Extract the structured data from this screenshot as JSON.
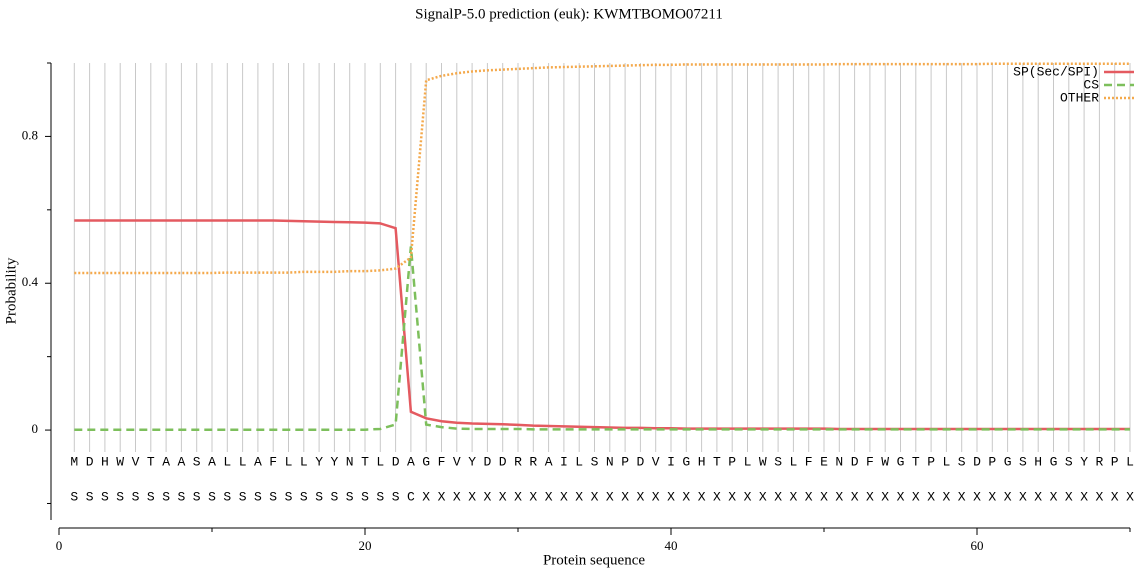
{
  "chart_data": {
    "type": "line",
    "title": "SignalP-5.0 prediction (euk):  KWMTBOMO07211",
    "xlabel": "Protein sequence",
    "ylabel": "Probability",
    "xlim": [
      0,
      70
    ],
    "xticks": [
      0,
      20,
      40,
      60
    ],
    "xminor_ticks": [
      10,
      30,
      50,
      70
    ],
    "ylim": [
      -0.245,
      1.0
    ],
    "yticks": [
      0,
      0.4,
      0.8
    ],
    "yminor_ticks": [
      -0.2,
      0.2,
      0.6,
      1.0
    ],
    "grid": "x",
    "legend": "upper right",
    "x": [
      1,
      2,
      3,
      4,
      5,
      6,
      7,
      8,
      9,
      10,
      11,
      12,
      13,
      14,
      15,
      16,
      17,
      18,
      19,
      20,
      21,
      22,
      23,
      24,
      25,
      26,
      27,
      28,
      29,
      30,
      31,
      32,
      33,
      34,
      35,
      36,
      37,
      38,
      39,
      40,
      41,
      42,
      43,
      44,
      45,
      46,
      47,
      48,
      49,
      50,
      51,
      52,
      53,
      54,
      55,
      56,
      57,
      58,
      59,
      60,
      61,
      62,
      63,
      64,
      65,
      66,
      67,
      68,
      69,
      70
    ],
    "residues": [
      "M",
      "D",
      "H",
      "W",
      "V",
      "T",
      "A",
      "A",
      "S",
      "A",
      "L",
      "L",
      "A",
      "F",
      "L",
      "L",
      "Y",
      "Y",
      "N",
      "T",
      "L",
      "D",
      "A",
      "G",
      "F",
      "V",
      "Y",
      "D",
      "D",
      "R",
      "R",
      "A",
      "I",
      "L",
      "S",
      "N",
      "P",
      "D",
      "V",
      "I",
      "G",
      "H",
      "T",
      "P",
      "L",
      "W",
      "S",
      "L",
      "F",
      "E",
      "N",
      "D",
      "F",
      "W",
      "G",
      "T",
      "P",
      "L",
      "S",
      "D",
      "P",
      "G",
      "S",
      "H",
      "G",
      "S",
      "Y",
      "R",
      "P",
      "L"
    ],
    "position_labels": [
      "S",
      "S",
      "S",
      "S",
      "S",
      "S",
      "S",
      "S",
      "S",
      "S",
      "S",
      "S",
      "S",
      "S",
      "S",
      "S",
      "S",
      "S",
      "S",
      "S",
      "S",
      "S",
      "C",
      "X",
      "X",
      "X",
      "X",
      "X",
      "X",
      "X",
      "X",
      "X",
      "X",
      "X",
      "X",
      "X",
      "X",
      "X",
      "X",
      "X",
      "X",
      "X",
      "X",
      "X",
      "X",
      "X",
      "X",
      "X",
      "X",
      "X",
      "X",
      "X",
      "X",
      "X",
      "X",
      "X",
      "X",
      "X",
      "X",
      "X",
      "X",
      "X",
      "X",
      "X",
      "X",
      "X",
      "X",
      "X",
      "X",
      "X"
    ],
    "series": [
      {
        "name": "SP(Sec/SPI)",
        "color": "#e45a60",
        "style": "solid",
        "values": [
          0.571,
          0.571,
          0.571,
          0.571,
          0.571,
          0.571,
          0.571,
          0.571,
          0.571,
          0.571,
          0.571,
          0.571,
          0.571,
          0.571,
          0.57,
          0.569,
          0.568,
          0.567,
          0.566,
          0.565,
          0.563,
          0.55,
          0.05,
          0.032,
          0.024,
          0.02,
          0.018,
          0.017,
          0.016,
          0.014,
          0.012,
          0.011,
          0.01,
          0.009,
          0.008,
          0.007,
          0.006,
          0.006,
          0.005,
          0.005,
          0.004,
          0.004,
          0.004,
          0.004,
          0.004,
          0.004,
          0.004,
          0.004,
          0.004,
          0.004,
          0.003,
          0.003,
          0.003,
          0.003,
          0.003,
          0.003,
          0.003,
          0.003,
          0.003,
          0.003,
          0.003,
          0.003,
          0.003,
          0.003,
          0.003,
          0.003,
          0.003,
          0.003,
          0.003,
          0.003
        ]
      },
      {
        "name": "CS",
        "color": "#7dbf5c",
        "style": "dashed",
        "values": [
          0.001,
          0.001,
          0.001,
          0.001,
          0.001,
          0.001,
          0.001,
          0.001,
          0.001,
          0.001,
          0.001,
          0.001,
          0.001,
          0.001,
          0.001,
          0.001,
          0.001,
          0.001,
          0.001,
          0.001,
          0.003,
          0.015,
          0.5,
          0.015,
          0.008,
          0.004,
          0.003,
          0.003,
          0.003,
          0.003,
          0.002,
          0.002,
          0.002,
          0.002,
          0.002,
          0.002,
          0.002,
          0.002,
          0.002,
          0.002,
          0.002,
          0.002,
          0.002,
          0.002,
          0.002,
          0.002,
          0.002,
          0.002,
          0.002,
          0.002,
          0.002,
          0.002,
          0.002,
          0.002,
          0.002,
          0.002,
          0.002,
          0.002,
          0.002,
          0.002,
          0.002,
          0.002,
          0.002,
          0.002,
          0.002,
          0.002,
          0.002,
          0.002,
          0.002,
          0.002
        ]
      },
      {
        "name": "OTHER",
        "color": "#f4a94c",
        "style": "dotted",
        "values": [
          0.428,
          0.428,
          0.428,
          0.428,
          0.428,
          0.428,
          0.428,
          0.428,
          0.428,
          0.428,
          0.429,
          0.429,
          0.429,
          0.429,
          0.429,
          0.431,
          0.431,
          0.431,
          0.433,
          0.433,
          0.435,
          0.44,
          0.47,
          0.953,
          0.965,
          0.972,
          0.977,
          0.98,
          0.982,
          0.984,
          0.986,
          0.988,
          0.989,
          0.99,
          0.991,
          0.992,
          0.993,
          0.994,
          0.995,
          0.995,
          0.996,
          0.996,
          0.996,
          0.996,
          0.996,
          0.996,
          0.996,
          0.996,
          0.996,
          0.996,
          0.997,
          0.997,
          0.997,
          0.997,
          0.997,
          0.997,
          0.997,
          0.997,
          0.997,
          0.997,
          0.998,
          0.998,
          0.998,
          0.998,
          0.998,
          0.998,
          0.998,
          0.998,
          0.998,
          0.998
        ]
      }
    ]
  }
}
